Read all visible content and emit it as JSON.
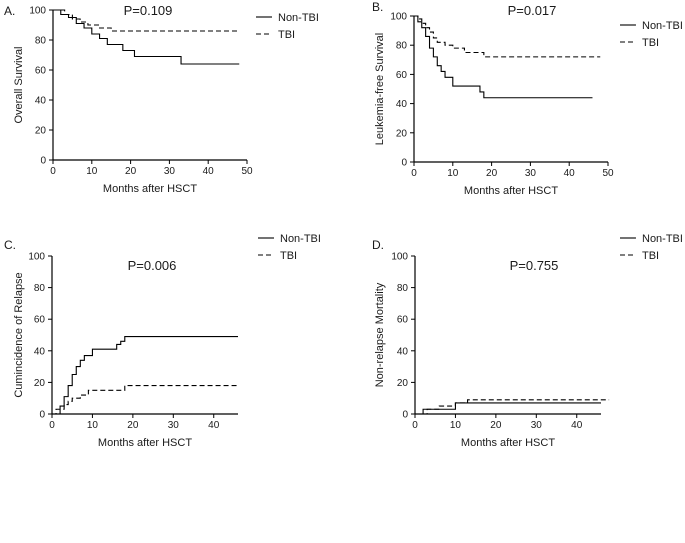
{
  "chart_data": [
    {
      "type": "line",
      "panel_label": "A.",
      "annotation": "P=0.109",
      "xlabel": "Months after HSCT",
      "ylabel": "Overall Survival",
      "xlim": [
        0,
        50
      ],
      "ylim": [
        0,
        100
      ],
      "xticks": [
        0,
        10,
        20,
        30,
        40,
        50
      ],
      "yticks": [
        0,
        20,
        40,
        60,
        80,
        100
      ],
      "legend_position": "top-right",
      "series": [
        {
          "name": "Non-TBI",
          "style": "solid",
          "step": true,
          "x": [
            0,
            2,
            4,
            6,
            8,
            10,
            12,
            14,
            18,
            21,
            33,
            48
          ],
          "y": [
            100,
            97,
            95,
            91,
            88,
            84,
            81,
            77,
            73,
            69,
            64,
            64
          ]
        },
        {
          "name": "TBI",
          "style": "dashed",
          "step": true,
          "x": [
            0,
            3,
            5,
            7,
            9,
            12,
            15,
            48
          ],
          "y": [
            100,
            97,
            94,
            92,
            90,
            88,
            86,
            86
          ]
        }
      ]
    },
    {
      "type": "line",
      "panel_label": "B.",
      "annotation": "P=0.017",
      "xlabel": "Months after HSCT",
      "ylabel": "Leukemia-free Survival",
      "xlim": [
        0,
        50
      ],
      "ylim": [
        0,
        100
      ],
      "xticks": [
        0,
        10,
        20,
        30,
        40,
        50
      ],
      "yticks": [
        0,
        20,
        40,
        60,
        80,
        100
      ],
      "legend_position": "top-right",
      "series": [
        {
          "name": "Non-TBI",
          "style": "solid",
          "step": true,
          "x": [
            0,
            1,
            2,
            3,
            4,
            5,
            6,
            7,
            8,
            10,
            17,
            18,
            46
          ],
          "y": [
            100,
            96,
            92,
            86,
            78,
            72,
            66,
            62,
            58,
            52,
            48,
            44,
            44
          ]
        },
        {
          "name": "TBI",
          "style": "dashed",
          "step": true,
          "x": [
            0,
            1,
            2,
            3,
            4,
            5,
            6,
            8,
            10,
            13,
            18,
            48
          ],
          "y": [
            100,
            98,
            95,
            92,
            89,
            85,
            82,
            80,
            78,
            75,
            72,
            72
          ]
        }
      ]
    },
    {
      "type": "line",
      "panel_label": "C.",
      "annotation": "P=0.006",
      "xlabel": "Months after HSCT",
      "ylabel": "Cumincidence of Relapse",
      "xlim": [
        0,
        46
      ],
      "ylim": [
        0,
        100
      ],
      "xticks": [
        0,
        10,
        20,
        30,
        40
      ],
      "yticks": [
        0,
        20,
        40,
        60,
        80,
        100
      ],
      "legend_position": "top-right",
      "series": [
        {
          "name": "Non-TBI",
          "style": "solid",
          "step": true,
          "x": [
            0,
            2,
            3,
            4,
            5,
            6,
            7,
            8,
            10,
            16,
            17,
            18,
            46
          ],
          "y": [
            0,
            5,
            11,
            18,
            25,
            30,
            34,
            37,
            41,
            44,
            46,
            49,
            49
          ]
        },
        {
          "name": "TBI",
          "style": "dashed",
          "step": true,
          "x": [
            0,
            1,
            3,
            4,
            5,
            7,
            9,
            16,
            18,
            46
          ],
          "y": [
            0,
            3,
            6,
            8,
            10,
            12,
            15,
            15,
            18,
            18
          ]
        }
      ]
    },
    {
      "type": "line",
      "panel_label": "D.",
      "annotation": "P=0.755",
      "xlabel": "Months after HSCT",
      "ylabel": "Non-relapse Mortality",
      "xlim": [
        0,
        46
      ],
      "ylim": [
        0,
        100
      ],
      "xticks": [
        0,
        10,
        20,
        30,
        40
      ],
      "yticks": [
        0,
        20,
        40,
        60,
        80,
        100
      ],
      "legend_position": "top-right",
      "series": [
        {
          "name": "Non-TBI",
          "style": "solid",
          "step": true,
          "x": [
            0,
            2,
            10,
            46
          ],
          "y": [
            0,
            3,
            7,
            7
          ]
        },
        {
          "name": "TBI",
          "style": "dashed",
          "step": true,
          "x": [
            0,
            3,
            6,
            10,
            13,
            48
          ],
          "y": [
            0,
            3,
            5,
            7,
            9,
            9
          ]
        }
      ]
    }
  ]
}
